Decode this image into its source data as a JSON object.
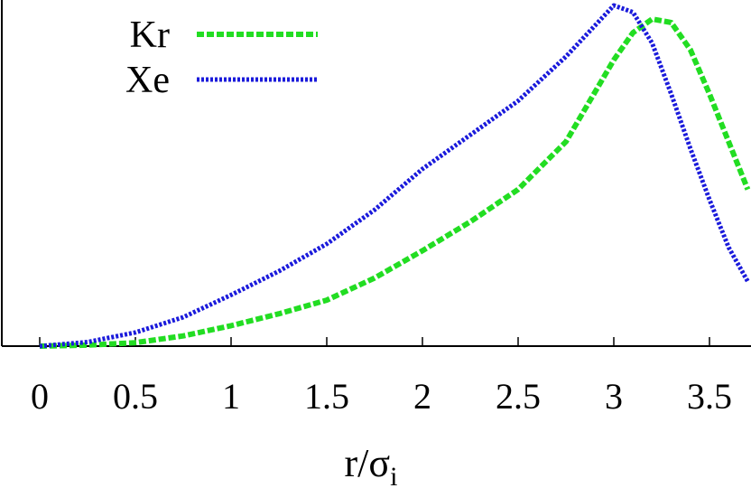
{
  "chart_data": {
    "type": "line",
    "title": "",
    "xlabel": "r/σ",
    "xlabel_subscript": "i",
    "ylabel": "",
    "xlim": [
      -0.1,
      3.72
    ],
    "ylim": [
      0.0,
      1.0
    ],
    "x_ticks": [
      0,
      0.5,
      1,
      1.5,
      2,
      2.5,
      3,
      3.5
    ],
    "x_tick_labels": [
      "0",
      "0.5",
      "1",
      "1.5",
      "2",
      "2.5",
      "3",
      "3.5"
    ],
    "legend_position": "top-left",
    "grid": false,
    "series": [
      {
        "name": "Kr",
        "color": "#22dd22",
        "style": "dashed",
        "x": [
          0,
          0.25,
          0.5,
          0.75,
          1.0,
          1.25,
          1.5,
          1.75,
          2.0,
          2.25,
          2.5,
          2.75,
          3.0,
          3.1,
          3.2,
          3.3,
          3.4,
          3.5,
          3.6,
          3.7
        ],
        "y": [
          0.0,
          0.003,
          0.01,
          0.03,
          0.06,
          0.095,
          0.135,
          0.2,
          0.28,
          0.365,
          0.46,
          0.6,
          0.84,
          0.92,
          0.96,
          0.95,
          0.87,
          0.74,
          0.6,
          0.46
        ]
      },
      {
        "name": "Xe",
        "color": "#1a1adb",
        "style": "dotted",
        "x": [
          0,
          0.25,
          0.5,
          0.75,
          1.0,
          1.25,
          1.5,
          1.75,
          2.0,
          2.25,
          2.5,
          2.75,
          3.0,
          3.1,
          3.2,
          3.3,
          3.4,
          3.5,
          3.6,
          3.7
        ],
        "y": [
          0.0,
          0.012,
          0.04,
          0.085,
          0.15,
          0.22,
          0.3,
          0.4,
          0.52,
          0.62,
          0.72,
          0.85,
          1.0,
          0.98,
          0.89,
          0.74,
          0.58,
          0.43,
          0.29,
          0.19
        ]
      }
    ]
  }
}
